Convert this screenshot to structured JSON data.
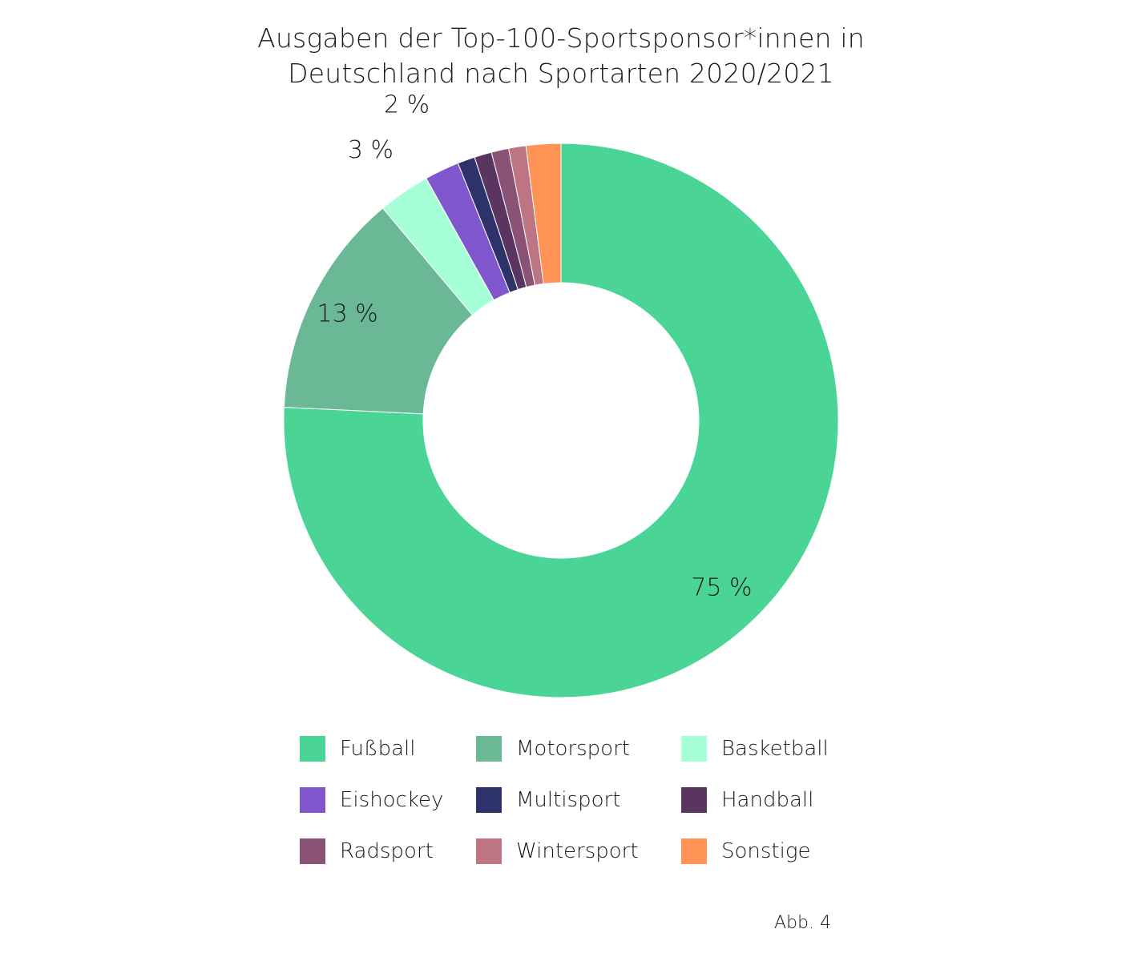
{
  "title_lines": [
    "Ausgaben der Top-100-Sportsponsor*innen in",
    "Deutschland nach Sportarten 2020/2021"
  ],
  "figure_label": "Abb. 4",
  "chart_data": {
    "type": "pie",
    "variant": "donut",
    "start_angle": "top, clockwise",
    "slices": [
      {
        "label": "Fußball",
        "value": 75,
        "color": "#4AD597",
        "data_label": "75 %"
      },
      {
        "label": "Motorsport",
        "value": 13,
        "color": "#6BB897",
        "data_label": "13 %"
      },
      {
        "label": "Basketball",
        "value": 3,
        "color": "#A7FFD8",
        "data_label": "3 %"
      },
      {
        "label": "Eishockey",
        "value": 2,
        "color": "#7F56CC",
        "data_label": "2 %"
      },
      {
        "label": "Multisport",
        "value": 1,
        "color": "#2D336A",
        "data_label": ""
      },
      {
        "label": "Handball",
        "value": 1,
        "color": "#5B3562",
        "data_label": ""
      },
      {
        "label": "Radsport",
        "value": 1,
        "color": "#8A5274",
        "data_label": ""
      },
      {
        "label": "Wintersport",
        "value": 1,
        "color": "#BD7483",
        "data_label": ""
      },
      {
        "label": "Sonstige",
        "value": 2,
        "color": "#FF9255",
        "data_label": ""
      }
    ],
    "legend_position": "bottom"
  }
}
